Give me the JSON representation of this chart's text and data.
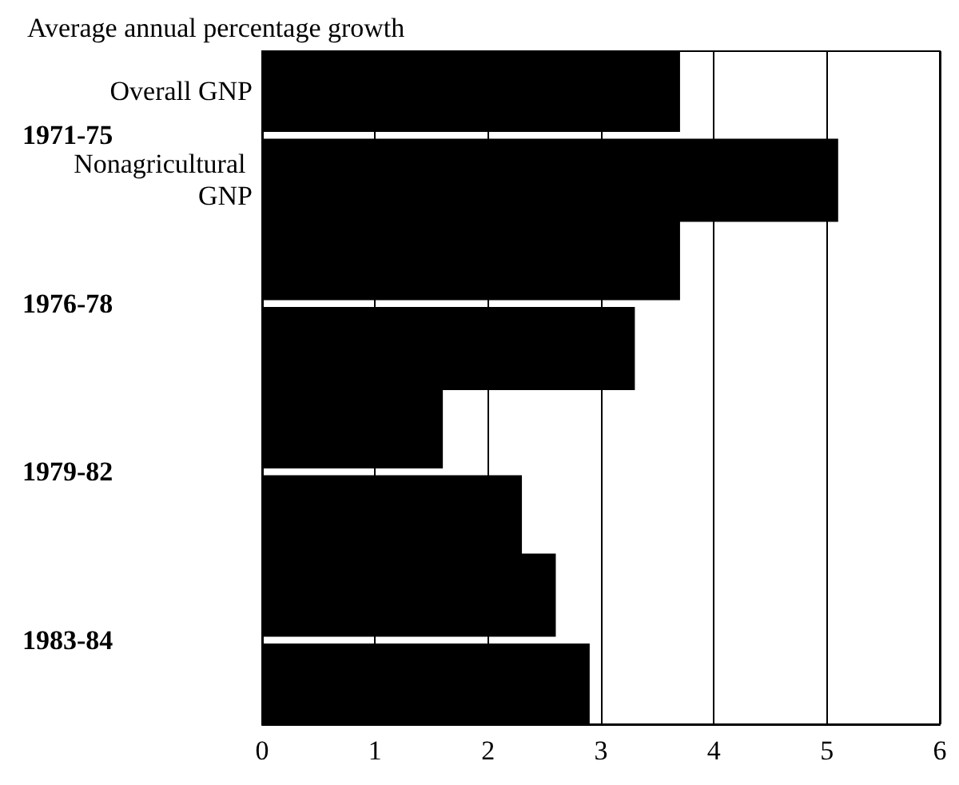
{
  "chart_data": {
    "type": "bar",
    "orientation": "horizontal",
    "title": "Average annual percentage growth",
    "categories": [
      "1971-75",
      "1976-78",
      "1979-82",
      "1983-84"
    ],
    "series": [
      {
        "name": "Overall GNP",
        "color": "#000000",
        "values": [
          3.7,
          3.7,
          1.6,
          2.6
        ]
      },
      {
        "name": "Nonagricultural GNP",
        "color": "#000000",
        "values": [
          5.1,
          3.3,
          2.3,
          2.9
        ]
      }
    ],
    "xlim": [
      0,
      6
    ],
    "xticks": [
      0,
      1,
      2,
      3,
      4,
      5,
      6
    ],
    "grid": "x",
    "legend": false
  }
}
